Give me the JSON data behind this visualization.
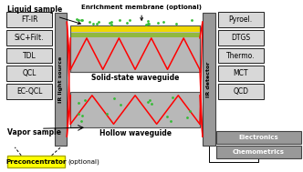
{
  "left_labels": [
    "FT-IR",
    "SiC+Filt.",
    "TDL",
    "QCL",
    "EC-QCL"
  ],
  "right_labels_top": [
    "Pyroel.",
    "DTGS",
    "Thermo.",
    "MCT",
    "QCD"
  ],
  "right_labels_bottom": [
    "Electronics",
    "Chemometrics"
  ],
  "ir_source_text": "IR light source",
  "ir_detector_text": "IR detector",
  "top_waveguide_label": "Solid-state waveguide",
  "bottom_waveguide_label": "Hollow waveguide",
  "enrichment_text": "Enrichment membrane (optional)",
  "liquid_sample_text": "Liquid sample",
  "vapor_sample_text": "Vapor sample",
  "preconc_text": "Preconcentrator",
  "optional_text": "(optional)",
  "waveguide_color": "#b8b8b8",
  "box_color": "#d8d8d8",
  "ir_column_color": "#999999",
  "membrane_yellow": "#f0d800",
  "membrane_green": "#90b840",
  "red_line_color": "#ff0000",
  "green_dot_color": "#33bb33",
  "preconc_bg": "#ffff00",
  "preconc_border": "#aaaa00"
}
